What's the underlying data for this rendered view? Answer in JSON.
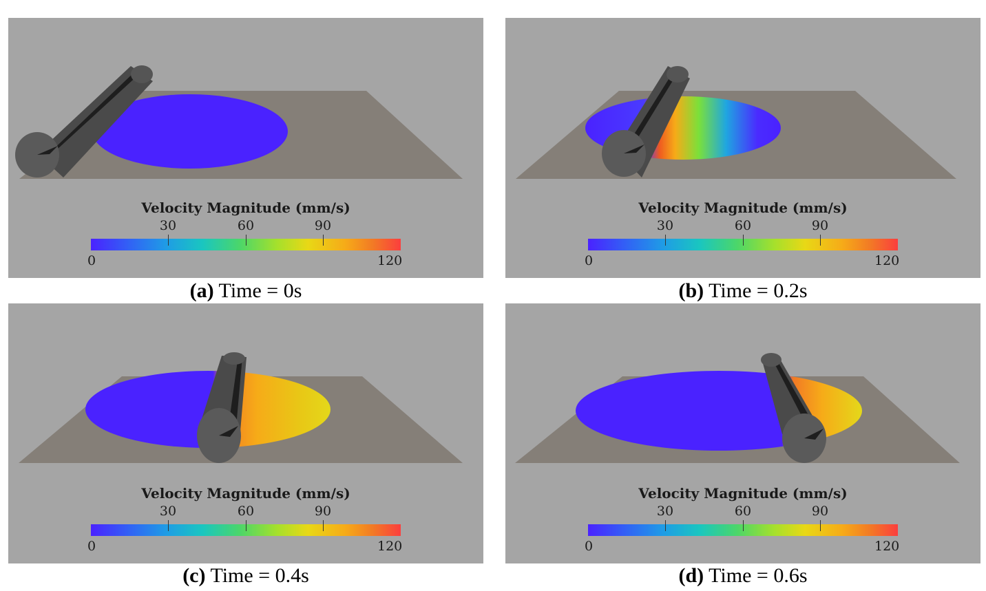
{
  "colorbar": {
    "title": "Velocity Magnitude (mm/s)",
    "min_label": "0",
    "max_label": "120",
    "ticks": [
      "30",
      "60",
      "90"
    ]
  },
  "panels": [
    {
      "id": "a",
      "caption_tag": "(a)",
      "caption_text": "Time = 0s"
    },
    {
      "id": "b",
      "caption_tag": "(b)",
      "caption_text": "Time = 0.2s"
    },
    {
      "id": "c",
      "caption_tag": "(c)",
      "caption_text": "Time = 0.4s"
    },
    {
      "id": "d",
      "caption_tag": "(d)",
      "caption_text": "Time = 0.6s"
    }
  ],
  "colors": {
    "background": "#a5a5a5",
    "plate": "#857f78",
    "particles_low": "#4a22ff",
    "particles_high": "#f27a25",
    "roller": "#4a4a4a"
  }
}
